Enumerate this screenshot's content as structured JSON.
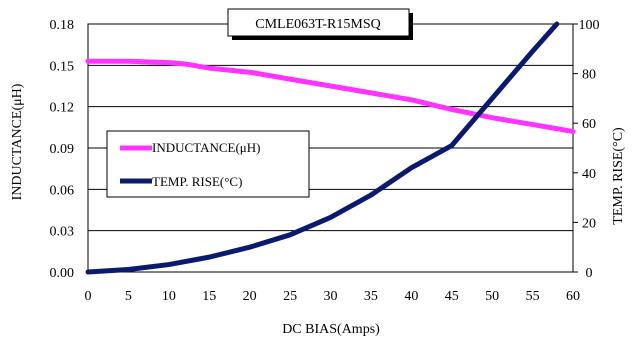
{
  "chart_data": {
    "type": "line",
    "title": "CMLE063T-R15MSQ",
    "xlabel": "DC BIAS(Amps)",
    "ylabel_left": "INDUCTANCE(μH)",
    "ylabel_right": "TEMP. RISE(°C)",
    "xlim": [
      0,
      60
    ],
    "ylim_left": [
      0,
      0.18
    ],
    "ylim_right": [
      0,
      100
    ],
    "x_ticks": [
      "0",
      "5",
      "10",
      "15",
      "20",
      "25",
      "30",
      "35",
      "40",
      "45",
      "50",
      "55",
      "60"
    ],
    "y_left_ticks": [
      "0.00",
      "0.03",
      "0.06",
      "0.09",
      "0.12",
      "0.15",
      "0.18"
    ],
    "y_right_ticks": [
      "0",
      "20",
      "40",
      "60",
      "80",
      "100"
    ],
    "grid": "horizontal",
    "legend_position": "middle-left",
    "series": [
      {
        "name": "INDUCTANCE(μH)",
        "axis": "left",
        "color": "#ff33ff",
        "x": [
          0,
          5,
          10,
          12,
          15,
          20,
          25,
          30,
          35,
          40,
          45,
          50,
          55,
          60
        ],
        "values": [
          0.153,
          0.153,
          0.152,
          0.151,
          0.148,
          0.145,
          0.14,
          0.135,
          0.13,
          0.125,
          0.118,
          0.112,
          0.107,
          0.102
        ]
      },
      {
        "name": "TEMP. RISE(°C)",
        "axis": "right",
        "color": "#0a1a6e",
        "x": [
          0,
          5,
          10,
          15,
          20,
          25,
          30,
          35,
          40,
          45,
          50,
          55,
          58
        ],
        "values": [
          0,
          1,
          3,
          6,
          10,
          15,
          22,
          31,
          42,
          51,
          70,
          89,
          100
        ]
      }
    ]
  }
}
